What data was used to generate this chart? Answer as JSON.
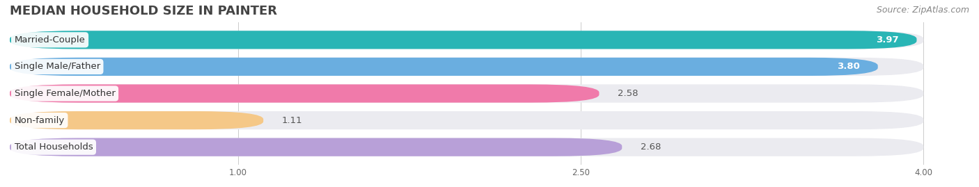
{
  "title": "MEDIAN HOUSEHOLD SIZE IN PAINTER",
  "source": "Source: ZipAtlas.com",
  "categories": [
    "Married-Couple",
    "Single Male/Father",
    "Single Female/Mother",
    "Non-family",
    "Total Households"
  ],
  "values": [
    3.97,
    3.8,
    2.58,
    1.11,
    2.68
  ],
  "bar_colors": [
    "#29b5b5",
    "#6aaee0",
    "#f07aaa",
    "#f5c888",
    "#b8a0d8"
  ],
  "xlim_min": 0.0,
  "xlim_max": 4.2,
  "data_min": 0.0,
  "data_max": 4.0,
  "xticks": [
    1.0,
    2.5,
    4.0
  ],
  "background_color": "#ffffff",
  "bar_bg_color": "#ebebf0",
  "title_fontsize": 13,
  "source_fontsize": 9,
  "label_fontsize": 9.5,
  "value_fontsize": 9.5,
  "bar_height": 0.68,
  "value_inside_threshold": 3.5
}
